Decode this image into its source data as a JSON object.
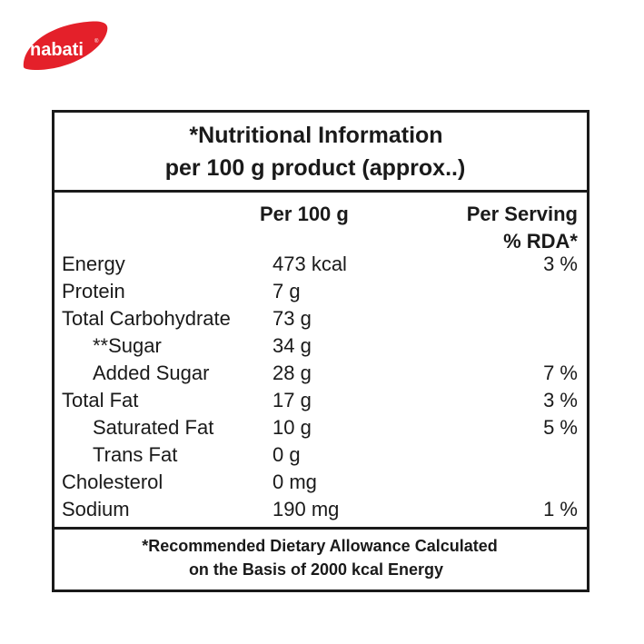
{
  "brand": {
    "logo_text": "nabati",
    "logo_color": "#e4202a"
  },
  "header": {
    "line1": "*Nutritional Information",
    "line2": "per 100 g product (approx..)"
  },
  "columns": {
    "per100": "Per 100 g",
    "per_serving": "Per Serving",
    "rda": "% RDA*"
  },
  "rows": [
    {
      "name": "Energy",
      "amount": "473 kcal",
      "rda": "3 %"
    },
    {
      "name": "Protein",
      "amount": "7 g",
      "rda": ""
    },
    {
      "name": "Total Carbohydrate",
      "amount": "73 g",
      "rda": ""
    },
    {
      "name": "**Sugar",
      "amount": "34 g",
      "rda": ""
    },
    {
      "name": "Added Sugar",
      "amount": "28 g",
      "rda": "7 %"
    },
    {
      "name": "Total Fat",
      "amount": "17 g",
      "rda": "3 %"
    },
    {
      "name": "Saturated Fat",
      "amount": "10 g",
      "rda": "5 %"
    },
    {
      "name": "Trans Fat",
      "amount": "0 g",
      "rda": ""
    },
    {
      "name": "Cholesterol",
      "amount": "0 mg",
      "rda": ""
    },
    {
      "name": "Sodium",
      "amount": "190 mg",
      "rda": "1 %"
    }
  ],
  "footer": {
    "line1": "*Recommended Dietary Allowance Calculated",
    "line2": "on the Basis of 2000 kcal Energy"
  }
}
